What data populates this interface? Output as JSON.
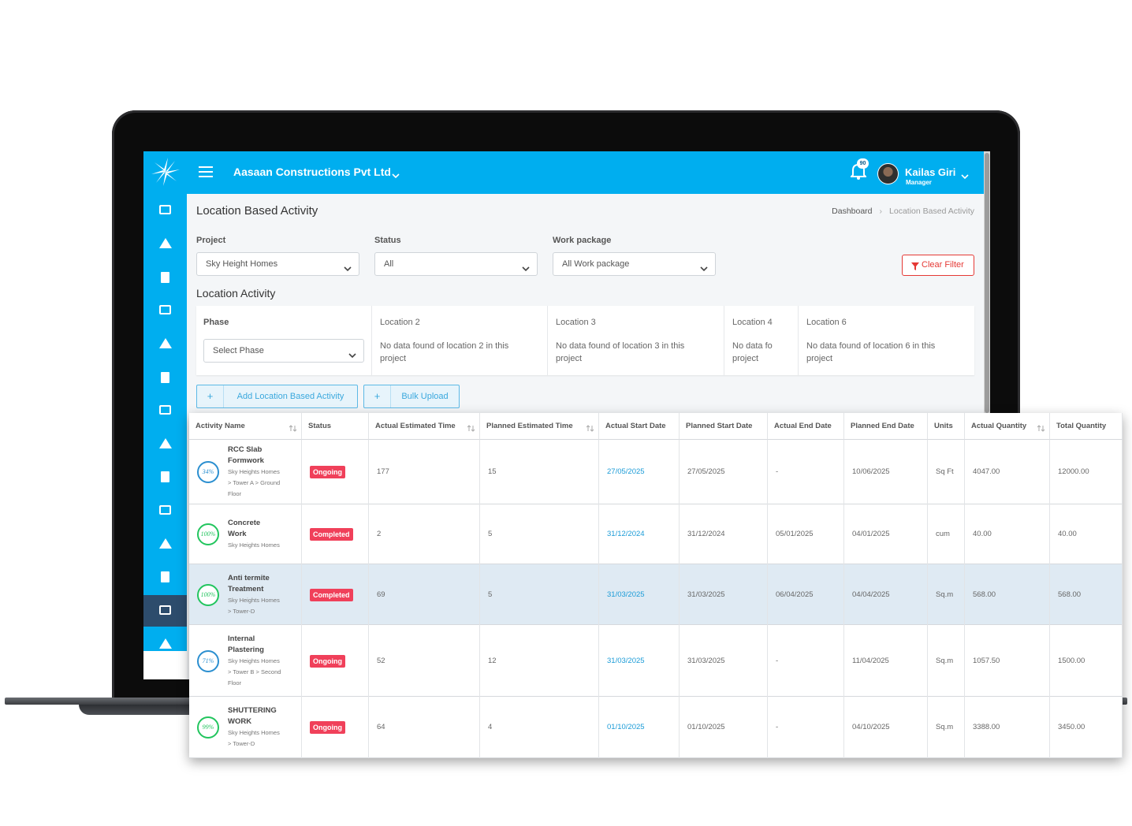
{
  "header": {
    "company": "Aasaan Constructions Pvt Ltd",
    "notifications": "90",
    "user_name": "Kailas Giri",
    "user_role": "Manager"
  },
  "page": {
    "title": "Location Based Activity",
    "breadcrumb": [
      "Dashboard",
      "Location Based Activity"
    ]
  },
  "filters": [
    {
      "label": "Project",
      "value": "Sky Height Homes"
    },
    {
      "label": "Status",
      "value": "All"
    },
    {
      "label": "Work package",
      "value": "All Work package"
    }
  ],
  "clear_filter": "Clear Filter",
  "location_activity": {
    "title": "Location Activity",
    "phase": {
      "label": "Phase",
      "placeholder": "Select Phase"
    },
    "locations": [
      {
        "name": "Location 2",
        "message": "No data found of location 2 in this project"
      },
      {
        "name": "Location 3",
        "message": "No data found of location 3 in this project"
      },
      {
        "name": "Location 4",
        "message": "No data fo project"
      },
      {
        "name": "Location 6",
        "message": "No data found of location 6 in this project"
      }
    ]
  },
  "buttons": [
    "Add Location Based Activity",
    "Bulk Upload"
  ],
  "table": {
    "columns": [
      {
        "label": "Activity Name",
        "sortable": true
      },
      {
        "label": "Status",
        "sortable": false
      },
      {
        "label": "Actual Estimated Time",
        "sortable": true
      },
      {
        "label": "Planned Estimated Time",
        "sortable": true
      },
      {
        "label": "Actual Start Date",
        "sortable": false
      },
      {
        "label": "Planned Start Date",
        "sortable": false
      },
      {
        "label": "Actual End Date",
        "sortable": false
      },
      {
        "label": "Planned End Date",
        "sortable": false
      },
      {
        "label": "Units",
        "sortable": false
      },
      {
        "label": "Actual Quantity",
        "sortable": true
      },
      {
        "label": "Total Quantity",
        "sortable": false
      }
    ],
    "rows": [
      {
        "progress": "34%",
        "ring_color": "#2b8fd0",
        "name": "RCC Slab Formwork",
        "location": "Sky Heights Homes > Tower A > Ground Floor",
        "status": "Ongoing",
        "cells": [
          "177",
          "15",
          "27/05/2025",
          "27/05/2025",
          "-",
          "10/06/2025",
          "Sq Ft",
          "4047.00",
          "12000.00"
        ]
      },
      {
        "progress": "100%",
        "ring_color": "#22c55e",
        "name": "Concrete Work",
        "location": "Sky Heights Homes",
        "status": "Completed",
        "cells": [
          "2",
          "5",
          "31/12/2024",
          "31/12/2024",
          "05/01/2025",
          "04/01/2025",
          "cum",
          "40.00",
          "40.00"
        ]
      },
      {
        "progress": "100%",
        "ring_color": "#22c55e",
        "name": "Anti termite Treatment",
        "location": "Sky Heights Homes > Tower-D",
        "status": "Completed",
        "cells": [
          "69",
          "5",
          "31/03/2025",
          "31/03/2025",
          "06/04/2025",
          "04/04/2025",
          "Sq.m",
          "568.00",
          "568.00"
        ]
      },
      {
        "progress": "71%",
        "ring_color": "#2b8fd0",
        "name": "Internal Plastering",
        "location": "Sky Heights Homes > Tower B > Second Floor",
        "status": "Ongoing",
        "cells": [
          "52",
          "12",
          "31/03/2025",
          "31/03/2025",
          "-",
          "11/04/2025",
          "Sq.m",
          "1057.50",
          "1500.00"
        ]
      },
      {
        "progress": "99%",
        "ring_color": "#22c55e",
        "name": "SHUTTERING WORK",
        "location": "Sky Heights Homes > Tower-D",
        "status": "Ongoing",
        "cells": [
          "64",
          "4",
          "01/10/2025",
          "01/10/2025",
          "-",
          "04/10/2025",
          "Sq.m",
          "3388.00",
          "3450.00"
        ]
      }
    ]
  }
}
